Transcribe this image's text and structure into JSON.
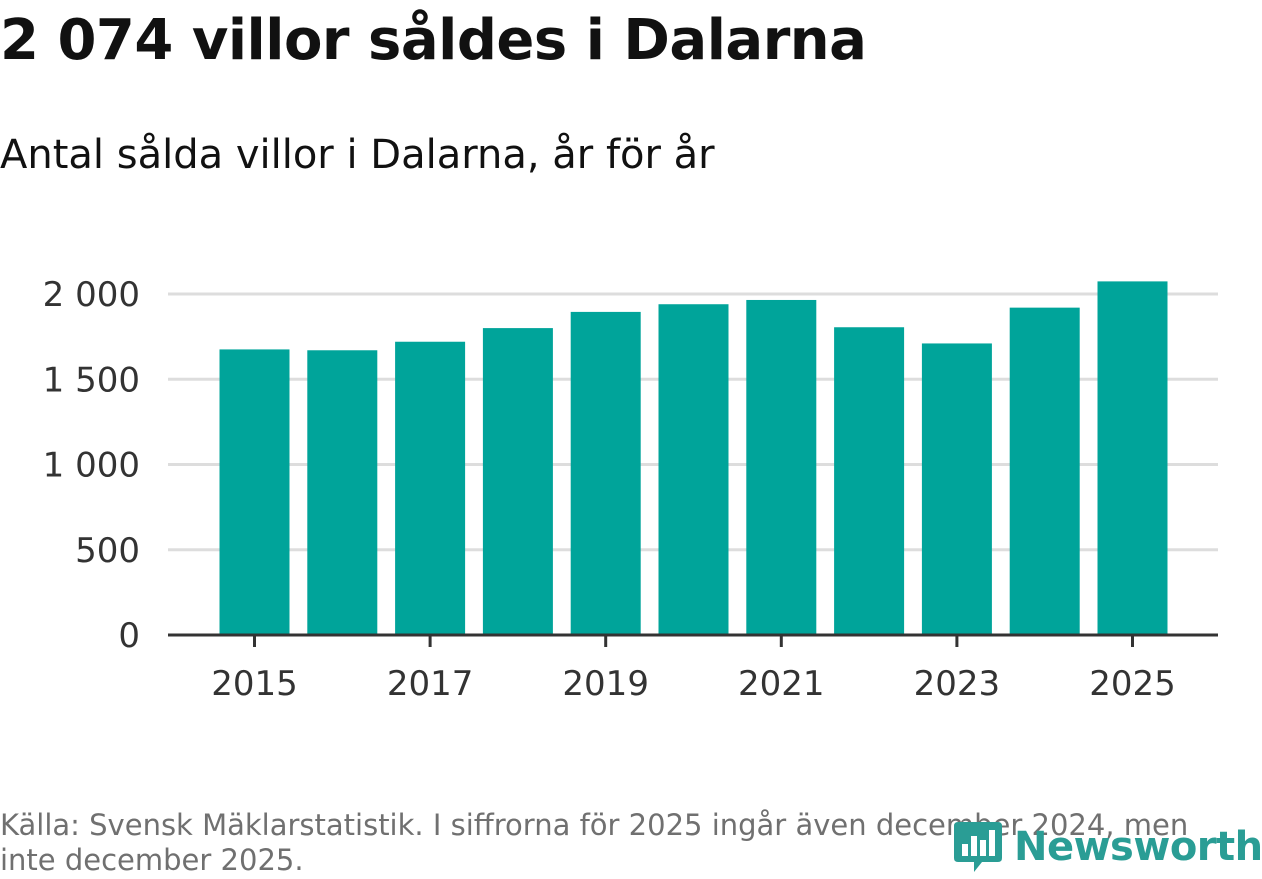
{
  "header": {
    "title": "2 074 villor såldes i Dalarna",
    "subtitle": "Antal sålda villor i Dalarna, år för år"
  },
  "footer": {
    "source": "Källa: Svensk Mäklarstatistik. I siffrorna för 2025 ingår även december 2024, men inte december 2025.",
    "logo_text": "Newsworthy"
  },
  "colors": {
    "bar": "#00a49a",
    "grid": "#dddddd",
    "axis": "#333333",
    "logo": "#2a9d95"
  },
  "chart_data": {
    "type": "bar",
    "title": "2 074 villor såldes i Dalarna",
    "subtitle": "Antal sålda villor i Dalarna, år för år",
    "categories": [
      "2015",
      "2016",
      "2017",
      "2018",
      "2019",
      "2020",
      "2021",
      "2022",
      "2023",
      "2024",
      "2025"
    ],
    "values": [
      1675,
      1670,
      1720,
      1800,
      1895,
      1940,
      1965,
      1805,
      1710,
      1920,
      2074
    ],
    "xlabel": "",
    "ylabel": "",
    "ylim": [
      0,
      2000
    ],
    "yticks": [
      0,
      500,
      1000,
      1500,
      2000
    ],
    "ytick_labels": [
      "0",
      "500",
      "1 000",
      "1 500",
      "2 000"
    ],
    "xtick_labels": [
      "2015",
      "2017",
      "2019",
      "2021",
      "2023",
      "2025"
    ],
    "grid": true
  }
}
